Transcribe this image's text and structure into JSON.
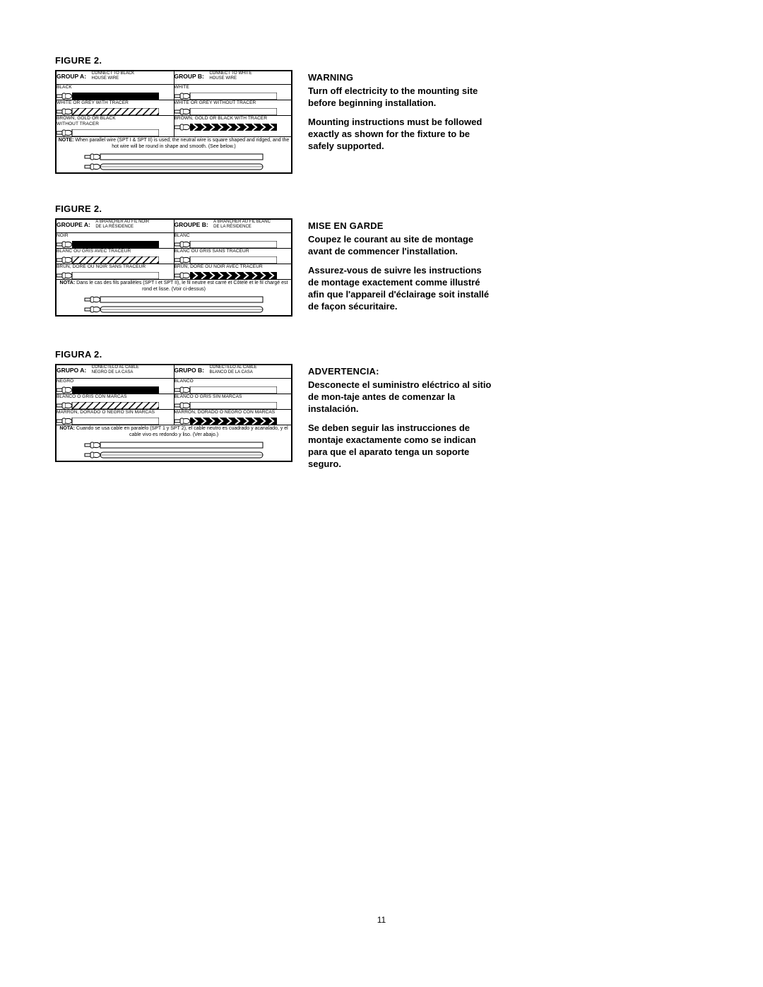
{
  "page_number": "11",
  "colors": {
    "ink": "#000000",
    "bg": "#ffffff"
  },
  "sections": [
    {
      "figure_title": "FIGURE 2.",
      "group_a_head": "GROUP A:",
      "group_a_sub": "CONNECT TO BLACK<br>HOUSE WIRE",
      "group_b_head": "GROUP B:",
      "group_b_sub": "CONNECT TO WHITE<br>HOUSE WIRE",
      "rowA1": "BLACK",
      "rowB1": "WHITE",
      "rowA2": "WHITE OR GREY WITH TRACER",
      "rowB2": "WHITE OR GREY WITHOUT TRACER",
      "rowA3": "BROWN, GOLD OR BLACK<br>WITHOUT TRACER",
      "rowB3": "BROWN, GOLD OR BLACK WITH TRACER",
      "note": "<b>NOTE:</b> When parallel wire (SPT I & SPT II) is used; the neutral wire is square shaped and ridged, and the hot wire will be round in shape and smooth. (See below.)",
      "warn_head": "WARNING",
      "warn1": "Turn off electricity to the mounting site before beginning installation.",
      "warn2": "Mounting instructions must be followed exactly as shown for the fixture to be safely supported."
    },
    {
      "figure_title": "FIGURE 2.",
      "group_a_head": "GROUPE A:",
      "group_a_sub": "À BRANCHER AU FIL NOIR<br>DE LA RÉSIDENCE",
      "group_b_head": "GROUPE B:",
      "group_b_sub": "À BRANCHER AU FIL BLANC<br>DE LA RÉSIDENCE",
      "rowA1": "NOIR",
      "rowB1": "BLANC",
      "rowA2": "BLANC OU GRIS AVEC TRACEUR",
      "rowB2": "BLANC OU GRIS SANS TRACEUR",
      "rowA3": "BRUN, DORÉ OU NOIR SANS TRACEUR",
      "rowB3": "BRUN, DORÉ OU NOIR AVEC TRACEUR",
      "note": "<b>NOTA:</b> Dans le cas des fils parallèles (SPT I et SPT II), le fil neutre est carré et Côtelé et le fil chargé est rond et lisse. (Voir ci-dessus)",
      "warn_head": "MISE EN GARDE",
      "warn1": "Coupez le courant au site de montage avant de commencer l'installation.",
      "warn2": "Assurez-vous de suivre les instructions de montage exactement comme illustré afin que l'appareil d'éclairage soit installé de façon sécuritaire."
    },
    {
      "figure_title": "FIGURA 2.",
      "group_a_head": "GRUPO A:",
      "group_a_sub": "CONÉCTELO AL CABLE<br>NEGRO DE LA CASA",
      "group_b_head": "GRUPO B:",
      "group_b_sub": "CONÉCTELO AL CABLE<br>BLANCO DE LA CASA",
      "rowA1": "NEGRO",
      "rowB1": "BLANCO",
      "rowA2": "BLANCO O GRIS CON MARCAS",
      "rowB2": "BLANCO O GRIS SIN MARCAS",
      "rowA3": "MARRON, DORADO O NEGRO SIN MARCAS",
      "rowB3": "MARRON, DORADO O NEGRO CON MARCAS",
      "note": "<b>NOTA:</b> Cuando se usa cable en paralelo (SPT 1 y SPT 2), el cable neutro es cuadrado y acanalado, y el cable vivo es redondo y liso. (Ver abajo.)",
      "warn_head": "ADVERTENCIA:",
      "warn1": "Desconecte el suministro eléctrico al sitio de mon-taje antes de comenzar la instalación.",
      "warn2": "Se deben seguir las instrucciones de montaje exactamente como se indican para que el aparato tenga un soporte seguro."
    }
  ]
}
